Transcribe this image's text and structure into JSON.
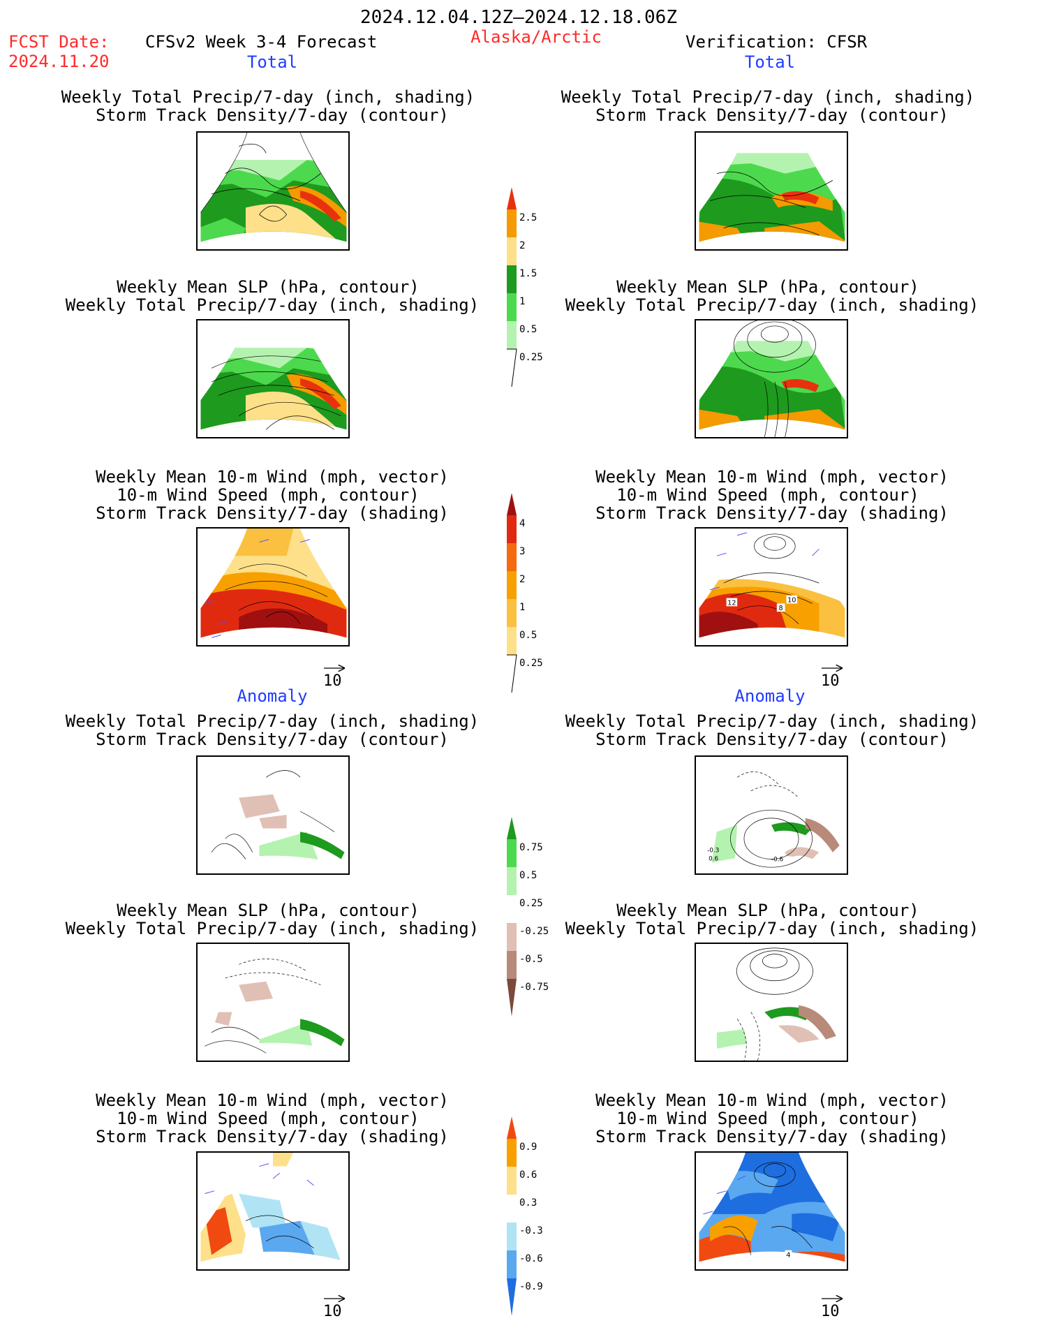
{
  "header": {
    "period": "2024.12.04.12Z–2024.12.18.06Z",
    "fcst_date_label": "FCST Date:",
    "fcst_date_value": "2024.11.20",
    "forecast_label": "CFSv2 Week 3-4 Forecast",
    "region": "Alaska/Arctic",
    "verification": "Verification: CFSR"
  },
  "sections": {
    "total": "Total",
    "anomaly": "Anomaly"
  },
  "titles": {
    "precip_storm": [
      "Weekly Total Precip/7-day (inch, shading)",
      "Storm Track Density/7-day (contour)"
    ],
    "slp_precip": [
      "Weekly Mean SLP (hPa, contour)",
      "Weekly Total Precip/7-day (inch, shading)"
    ],
    "wind": [
      "Weekly Mean 10-m Wind (mph, vector)",
      "10-m Wind Speed (mph, contour)",
      "Storm Track Density/7-day (shading)"
    ]
  },
  "vector_ref": "10",
  "panel_labels": {
    "verif_wind_total": [
      "12",
      "10",
      "8"
    ],
    "verif_precip_anom": [
      "-0.3",
      "0.6",
      "-0.6"
    ],
    "verif_wind_anom": [
      "4"
    ]
  },
  "colorbars": {
    "precip_total": {
      "ticks": [
        "2.5",
        "2",
        "1.5",
        "1",
        "0.5",
        "0.25"
      ],
      "colors": [
        "#e8320e",
        "#f59a00",
        "#fde089",
        "#1e9a1e",
        "#4dd94d",
        "#b4f2b0",
        "#ffffff"
      ]
    },
    "storm_total": {
      "ticks": [
        "4",
        "3",
        "2",
        "1",
        "0.5",
        "0.25"
      ],
      "colors": [
        "#a01010",
        "#e02a10",
        "#f56a10",
        "#f8a000",
        "#fbc040",
        "#fde089",
        "#ffffff"
      ]
    },
    "precip_anom": {
      "ticks": [
        "0.75",
        "0.5",
        "0.25",
        "-0.25",
        "-0.5",
        "-0.75"
      ],
      "colors": [
        "#1e9a1e",
        "#4dd94d",
        "#b4f2b0",
        "#ffffff",
        "#e0c0b4",
        "#b88a7a",
        "#7a4a3a"
      ]
    },
    "storm_anom": {
      "ticks": [
        "0.9",
        "0.6",
        "0.3",
        "-0.3",
        "-0.6",
        "-0.9"
      ],
      "colors": [
        "#f04a10",
        "#f8a000",
        "#fde089",
        "#ffffff",
        "#b0e4f4",
        "#5aa8f0",
        "#1e6ee0"
      ]
    }
  }
}
